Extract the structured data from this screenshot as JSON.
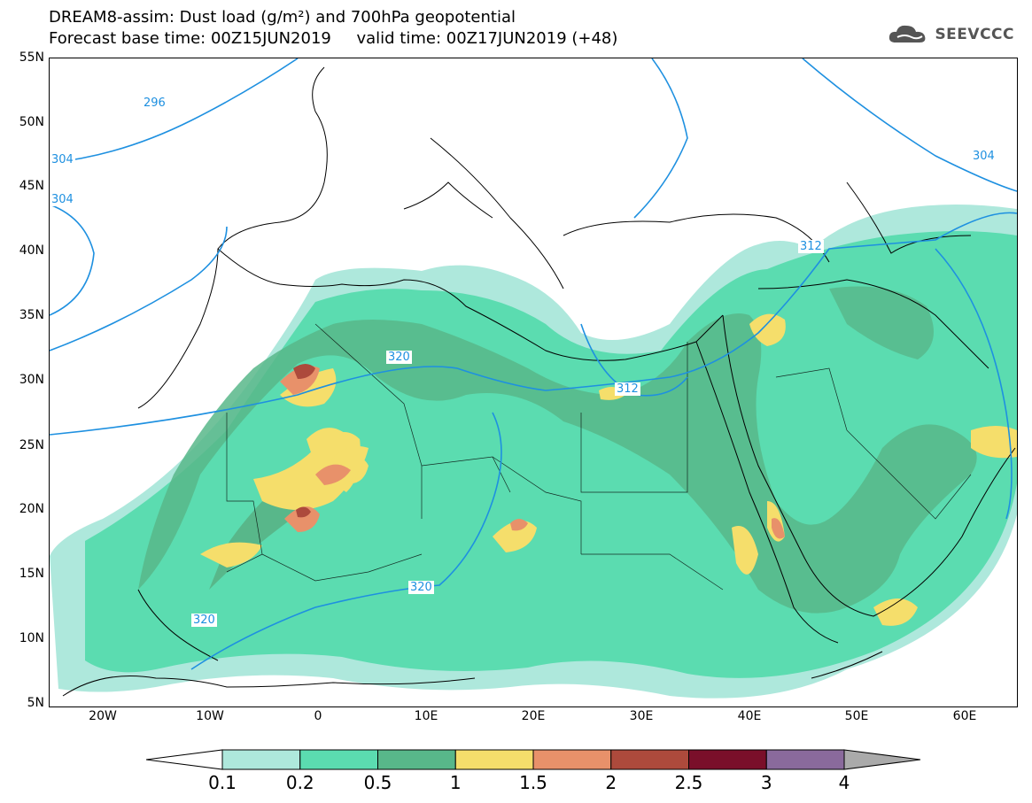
{
  "title_line1": "DREAM8-assim: Dust load (g/m²) and 700hPa geopotential",
  "title_line2": "Forecast base time: 00Z15JUN2019     valid time: 00Z17JUN2019 (+48)",
  "logo_text": "SEEVCCC",
  "lat_labels": [
    "55N",
    "50N",
    "45N",
    "40N",
    "35N",
    "30N",
    "25N",
    "20N",
    "15N",
    "10N",
    "5N"
  ],
  "lon_labels": [
    "20W",
    "10W",
    "0",
    "10E",
    "20E",
    "30E",
    "40E",
    "50E",
    "60E"
  ],
  "contour_labels": [
    "296",
    "304",
    "304",
    "312",
    "312",
    "320",
    "320",
    "320",
    "304"
  ],
  "colorbar": {
    "labels": [
      "0.1",
      "0.2",
      "0.5",
      "1",
      "1.5",
      "2",
      "2.5",
      "3",
      "4"
    ],
    "colors": [
      "#aee8dc",
      "#5bdcb0",
      "#58b78a",
      "#f5de6b",
      "#e8916a",
      "#ad4a3c",
      "#7a0f2a",
      "#8a6a9c"
    ],
    "under_color": "#ffffff",
    "over_color": "#aaaaaa"
  }
}
